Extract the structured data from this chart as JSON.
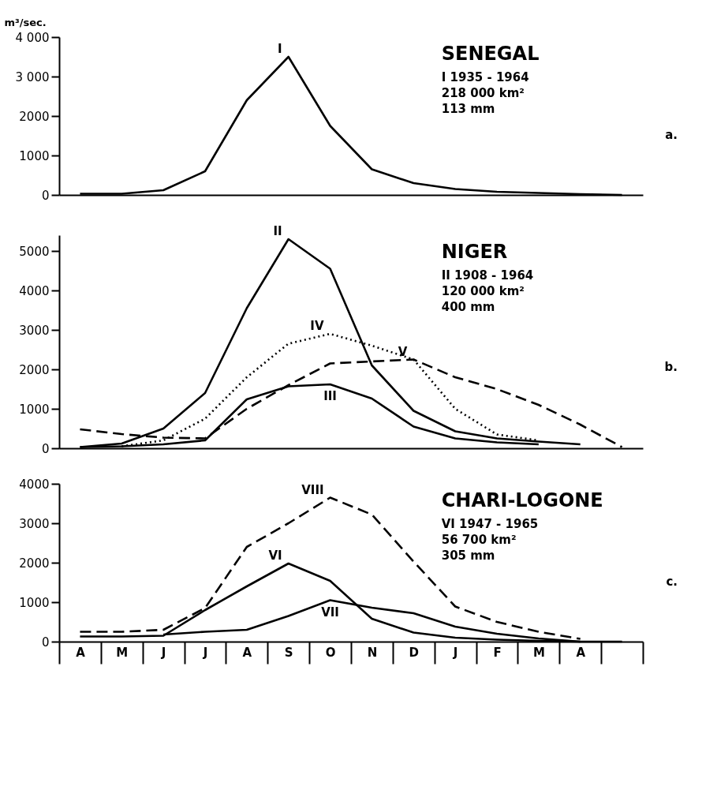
{
  "chart_data": [
    {
      "type": "line",
      "title": "SENEGAL",
      "subtitle": "I   1935 - 1964\n     218 000 km²\n     113 mm",
      "ylabel": "m³/sec.",
      "annotations": [
        "a."
      ],
      "categories": [
        null,
        null,
        null,
        null,
        null,
        null,
        null,
        null,
        null,
        null,
        null,
        null,
        null,
        null
      ],
      "ylim": [
        0,
        4000
      ],
      "yticks": [
        {
          "value": 0,
          "label": "0"
        },
        {
          "value": 1000,
          "label": "1000"
        },
        {
          "value": 2000,
          "label": "2000"
        },
        {
          "value": 3000,
          "label": "3 000"
        },
        {
          "value": 4000,
          "label": "4 000"
        }
      ],
      "tick_labels": "y",
      "legend": false,
      "grid": false,
      "series": [
        {
          "name": "I",
          "color": "#000000",
          "line_style": "solid",
          "values": [
            30,
            30,
            120,
            600,
            2400,
            3500,
            1750,
            650,
            300,
            150,
            80,
            50,
            20,
            0
          ]
        }
      ]
    },
    {
      "type": "line",
      "title": "NIGER",
      "subtitle": "II  1908 - 1964\n     120 000 km²\n     400 mm",
      "annotations": [
        "b."
      ],
      "categories": [
        null,
        null,
        null,
        null,
        null,
        null,
        null,
        null,
        null,
        null,
        null,
        null,
        null,
        null
      ],
      "ylim": [
        0,
        5400
      ],
      "yticks": [
        {
          "value": 0,
          "label": "0"
        },
        {
          "value": 1000,
          "label": "1000"
        },
        {
          "value": 2000,
          "label": "2000"
        },
        {
          "value": 3000,
          "label": "3000"
        },
        {
          "value": 4000,
          "label": "4000"
        },
        {
          "value": 5000,
          "label": "5000"
        }
      ],
      "tick_labels": "y",
      "legend": false,
      "grid": false,
      "series": [
        {
          "name": "II",
          "color": "#000000",
          "line_style": "solid",
          "values": [
            30,
            120,
            500,
            1400,
            3550,
            5300,
            4550,
            2100,
            950,
            430,
            250,
            170,
            100,
            null
          ]
        },
        {
          "name": "III",
          "color": "#000000",
          "line_style": "solid",
          "values": [
            30,
            50,
            100,
            200,
            1240,
            1570,
            1620,
            1260,
            550,
            250,
            150,
            100,
            null,
            null
          ]
        },
        {
          "name": "IV",
          "color": "#000000",
          "line_style": "dotted",
          "values": [
            null,
            50,
            200,
            750,
            1800,
            2650,
            2900,
            2600,
            2250,
            1000,
            350,
            200,
            null,
            null
          ]
        },
        {
          "name": "V",
          "color": "#000000",
          "line_style": "dashed",
          "values": [
            480,
            360,
            270,
            250,
            1000,
            1600,
            2150,
            2200,
            2250,
            1800,
            1500,
            1100,
            600,
            30
          ]
        }
      ]
    },
    {
      "type": "line",
      "title": "CHARI-LOGONE",
      "subtitle": "VI  1947 - 1965\n       56 700 km²\n       305 mm",
      "annotations": [
        "c."
      ],
      "categories": [
        "A",
        "M",
        "J",
        "J",
        "A",
        "S",
        "O",
        "N",
        "D",
        "J",
        "F",
        "M",
        "A",
        null
      ],
      "ylim": [
        0,
        4000
      ],
      "yticks": [
        0,
        1000,
        2000,
        3000,
        4000
      ],
      "legend": false,
      "grid": false,
      "series": [
        {
          "name": "VI",
          "color": "#000000",
          "line_style": "solid",
          "values": [
            130,
            130,
            150,
            800,
            1400,
            1980,
            1540,
            580,
            230,
            100,
            50,
            20,
            0,
            0
          ]
        },
        {
          "name": "VII",
          "color": "#000000",
          "line_style": "solid",
          "values": [
            null,
            null,
            180,
            250,
            300,
            650,
            1050,
            860,
            720,
            380,
            200,
            80,
            0,
            null
          ]
        },
        {
          "name": "VIII",
          "color": "#000000",
          "line_style": "dashed",
          "values": [
            250,
            250,
            300,
            850,
            2400,
            3000,
            3650,
            3220,
            2030,
            890,
            500,
            250,
            70,
            null
          ]
        }
      ]
    }
  ]
}
